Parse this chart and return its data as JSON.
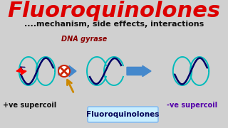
{
  "title": "Fluoroquinolones",
  "subtitle": "....mechanism, side effects, interactions",
  "dna_gyrase_label": "DNA gyrase",
  "label_left": "+ve supercoil",
  "label_right": "-ve supercoil",
  "label_box": "Fluoroquinolones",
  "bg_color": "#d0d0d0",
  "title_color": "#dd0000",
  "subtitle_color": "#111111",
  "dna_gyrase_color": "#8B0000",
  "label_left_color": "#111111",
  "label_right_color": "#5500aa",
  "teal_color": "#00bbbb",
  "dark_blue_color": "#000066",
  "arrow_color": "#4488cc",
  "orange_color": "#cc8800",
  "box_bg": "#c8eeff",
  "box_edge": "#88bbee"
}
